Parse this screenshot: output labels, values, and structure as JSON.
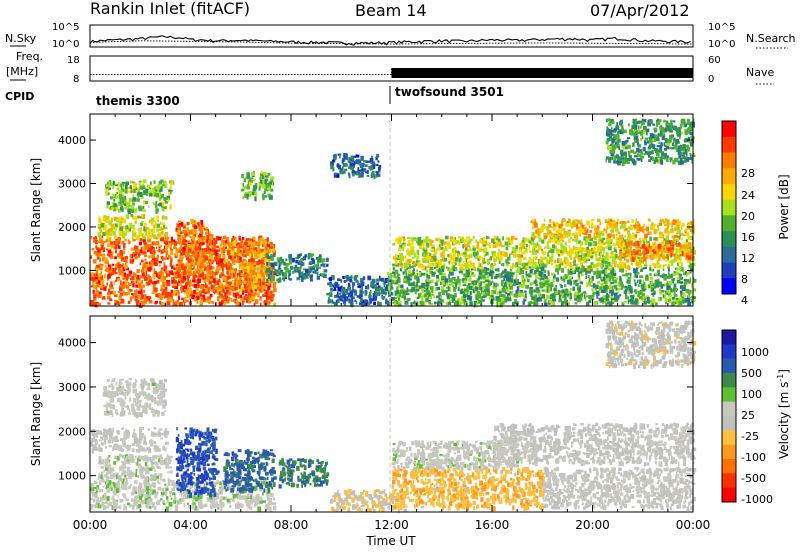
{
  "header": {
    "station": "Rankin Inlet (fitACF)",
    "beam": "Beam 14",
    "date": "07/Apr/2012"
  },
  "status_panels": {
    "nsky_label": "N.Sky",
    "nsky_ticks": [
      "10^5",
      "10^0"
    ],
    "nsearch_label": "N.Search",
    "nsearch_ticks": [
      "10^5",
      "10^0"
    ],
    "freq_label_top": "Freq.",
    "freq_label_bottom": "[MHz]",
    "freq_ticks": [
      "18",
      "8"
    ],
    "nave_label": "Nave",
    "nave_ticks": [
      "60",
      "0"
    ],
    "cpid_label": "CPID",
    "cpid_segments": [
      {
        "name": "themis 3300",
        "start_hour": 0,
        "end_hour": 12.0
      },
      {
        "name": "twofsound 3501",
        "start_hour": 12.0,
        "end_hour": 24
      }
    ]
  },
  "axes": {
    "ylabel": "Slant Range [km]",
    "yticks": [
      "1000",
      "2000",
      "3000",
      "4000"
    ],
    "xticks": [
      "00:00",
      "04:00",
      "08:00",
      "12:00",
      "16:00",
      "20:00",
      "00:00"
    ],
    "xlabel": "Time UT"
  },
  "colorbars": {
    "power": {
      "label": "Power [dB]",
      "ticks": [
        "28",
        "24",
        "20",
        "16",
        "12",
        "8",
        "4"
      ],
      "colors": [
        "#ff0000",
        "#ff3a00",
        "#ff7a00",
        "#ffaa00",
        "#ffd600",
        "#a8e020",
        "#50b030",
        "#2d8f55",
        "#2a6b9a",
        "#1c3fc0",
        "#0000ff"
      ]
    },
    "velocity": {
      "label_main": "Velocity  [m s",
      "label_exp": "-1",
      "label_close": "]",
      "ticks": [
        "1000",
        "500",
        "100",
        "25",
        "-25",
        "-100",
        "-500",
        "-1000"
      ],
      "colors": [
        "#1a1aa0",
        "#2038c8",
        "#2a5ab0",
        "#3a8a4a",
        "#5ec030",
        "#c8c8c0",
        "#c0c0bc",
        "#ffc040",
        "#ff9a20",
        "#ff7000",
        "#ff3000",
        "#ff0000"
      ]
    }
  },
  "chart_data": [
    {
      "type": "line",
      "title": "N.Sky / N.Search",
      "x_unit": "hours UT",
      "ylim": [
        1,
        100000
      ],
      "y_scale": "log",
      "series": [
        {
          "name": "N.Sky",
          "x": [
            0,
            1,
            2,
            3,
            4,
            5,
            6,
            7,
            8,
            9,
            10,
            11,
            12,
            13,
            14,
            15,
            16,
            17,
            18,
            19,
            20,
            21,
            22,
            23,
            24
          ],
          "values": [
            12,
            30,
            60,
            200,
            40,
            20,
            25,
            15,
            10,
            8,
            6,
            5,
            8,
            12,
            20,
            15,
            30,
            25,
            40,
            60,
            30,
            80,
            20,
            15,
            10
          ]
        },
        {
          "name": "N.Search",
          "x": [
            0,
            2,
            4,
            6,
            8,
            10,
            12,
            14,
            16,
            18,
            20,
            22,
            24
          ],
          "values": [
            8,
            20,
            15,
            10,
            5,
            4,
            3,
            4,
            5,
            6,
            5,
            4,
            3
          ]
        }
      ]
    },
    {
      "type": "line",
      "title": "Frequency / Nave",
      "x_unit": "hours UT",
      "series": [
        {
          "name": "Freq. [MHz]",
          "x": [
            0,
            12,
            12,
            24
          ],
          "values": [
            10.5,
            10.5,
            10.2,
            10.2
          ]
        },
        {
          "name": "Nave",
          "x": [
            0,
            12,
            12,
            24
          ],
          "values": [
            14,
            14,
            30,
            30
          ]
        }
      ]
    },
    {
      "type": "heatmap",
      "title": "Power [dB]",
      "x_unit": "hours UT",
      "y_unit": "Slant Range [km]",
      "xlim": [
        0,
        24
      ],
      "ylim": [
        180,
        4600
      ],
      "value_range": [
        0,
        32
      ],
      "regions": [
        {
          "x0": 0.0,
          "x1": 7.3,
          "y0": 250,
          "y1": 1800,
          "value": 27
        },
        {
          "x0": 0.3,
          "x1": 3.0,
          "y0": 1800,
          "y1": 2300,
          "value": 18
        },
        {
          "x0": 3.4,
          "x1": 4.8,
          "y0": 800,
          "y1": 2200,
          "value": 26
        },
        {
          "x0": 5.2,
          "x1": 7.2,
          "y0": 600,
          "y1": 1700,
          "value": 24
        },
        {
          "x0": 0.6,
          "x1": 3.2,
          "y0": 2400,
          "y1": 3100,
          "value": 14
        },
        {
          "x0": 6.0,
          "x1": 7.2,
          "y0": 2700,
          "y1": 3300,
          "value": 13
        },
        {
          "x0": 7.0,
          "x1": 9.4,
          "y0": 800,
          "y1": 1400,
          "value": 9
        },
        {
          "x0": 9.4,
          "x1": 12.0,
          "y0": 250,
          "y1": 900,
          "value": 6
        },
        {
          "x0": 9.5,
          "x1": 11.5,
          "y0": 3200,
          "y1": 3700,
          "value": 6
        },
        {
          "x0": 11.8,
          "x1": 24.0,
          "y0": 250,
          "y1": 1100,
          "value": 12
        },
        {
          "x0": 12.0,
          "x1": 24.0,
          "y0": 1100,
          "y1": 1800,
          "value": 17
        },
        {
          "x0": 17.5,
          "x1": 24.0,
          "y0": 1800,
          "y1": 2200,
          "value": 21
        },
        {
          "x0": 21.0,
          "x1": 24.0,
          "y0": 1300,
          "y1": 1700,
          "value": 24
        },
        {
          "x0": 20.5,
          "x1": 24.0,
          "y0": 3500,
          "y1": 4500,
          "value": 10
        }
      ]
    },
    {
      "type": "heatmap",
      "title": "Velocity [m s-1]",
      "x_unit": "hours UT",
      "y_unit": "Slant Range [km]",
      "xlim": [
        0,
        24
      ],
      "ylim": [
        180,
        4600
      ],
      "value_range": [
        -1000,
        1000
      ],
      "regions": [
        {
          "x0": 0.0,
          "x1": 7.3,
          "y0": 300,
          "y1": 900,
          "value": 120
        },
        {
          "x0": 0.3,
          "x1": 3.2,
          "y0": 900,
          "y1": 1500,
          "value": 90
        },
        {
          "x0": 3.4,
          "x1": 5.0,
          "y0": 600,
          "y1": 2100,
          "value": 700
        },
        {
          "x0": 5.3,
          "x1": 7.3,
          "y0": 700,
          "y1": 1600,
          "value": 600
        },
        {
          "x0": 7.5,
          "x1": 9.4,
          "y0": 800,
          "y1": 1400,
          "value": 500
        },
        {
          "x0": 0.5,
          "x1": 3.0,
          "y0": 2400,
          "y1": 3200,
          "value": 60
        },
        {
          "x0": 0.0,
          "x1": 3.0,
          "y0": 1600,
          "y1": 2100,
          "value": 15
        },
        {
          "x0": 9.5,
          "x1": 12.5,
          "y0": 250,
          "y1": 700,
          "value": -150
        },
        {
          "x0": 12.0,
          "x1": 18.0,
          "y0": 300,
          "y1": 1200,
          "value": -300
        },
        {
          "x0": 12.0,
          "x1": 17.0,
          "y0": 1200,
          "y1": 1800,
          "value": 80
        },
        {
          "x0": 16.0,
          "x1": 24.0,
          "y0": 1300,
          "y1": 2200,
          "value": 10
        },
        {
          "x0": 18.0,
          "x1": 24.0,
          "y0": 300,
          "y1": 1200,
          "value": 40
        },
        {
          "x0": 20.5,
          "x1": 24.0,
          "y0": 3500,
          "y1": 4500,
          "value": -80
        }
      ]
    }
  ]
}
